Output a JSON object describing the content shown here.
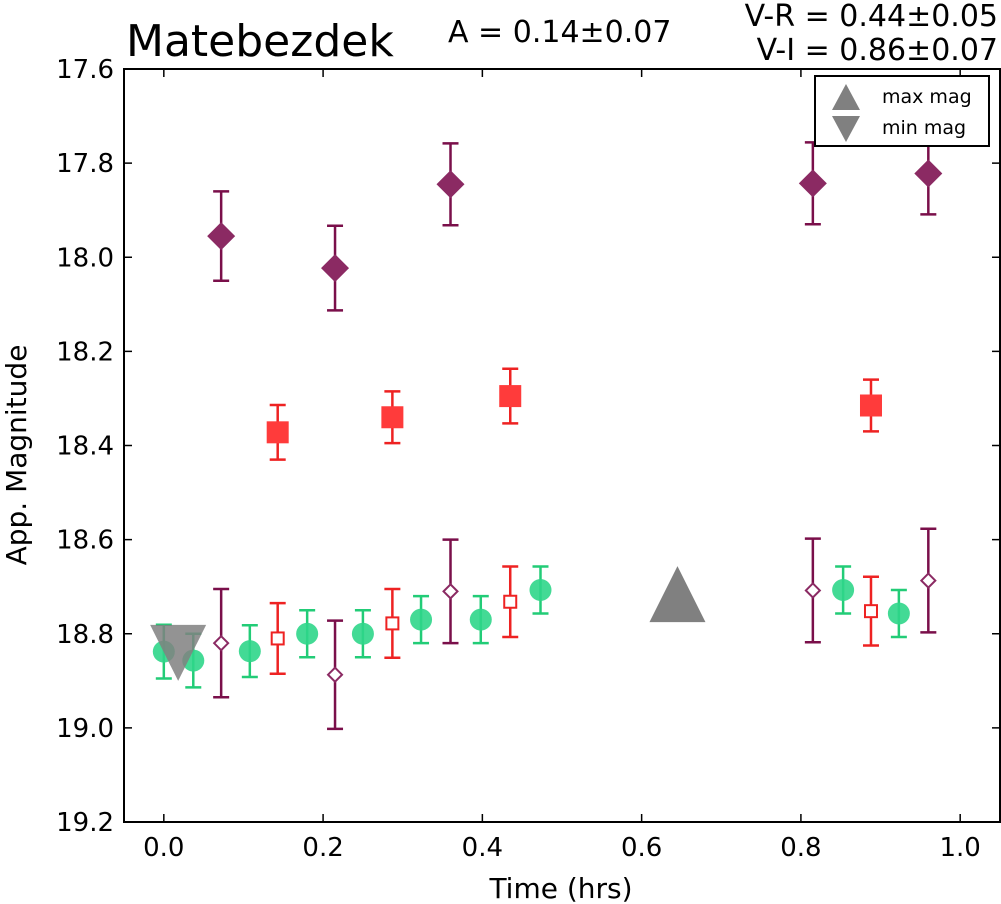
{
  "chart_data": {
    "type": "scatter",
    "title": "Matebezdek",
    "annotations": {
      "amplitude": "A  = 0.14±0.07",
      "v_r": "V-R = 0.44±0.05",
      "v_i": "V-I  = 0.86±0.07"
    },
    "xlabel": "Time (hrs)",
    "ylabel": "App. Magnitude",
    "xlim": [
      -0.05,
      1.05
    ],
    "ylim": [
      19.2,
      17.6
    ],
    "y_inverted": true,
    "xticks": [
      "0.0",
      "0.2",
      "0.4",
      "0.6",
      "0.8",
      "1.0"
    ],
    "xtick_values": [
      0.0,
      0.2,
      0.4,
      0.6,
      0.8,
      1.0
    ],
    "yticks": [
      "17.6",
      "17.8",
      "18.0",
      "18.2",
      "18.4",
      "18.6",
      "18.8",
      "19.0",
      "19.2"
    ],
    "ytick_values": [
      17.6,
      17.8,
      18.0,
      18.2,
      18.4,
      18.6,
      18.8,
      19.0,
      19.2
    ],
    "legend": {
      "position": "top-right",
      "entries": [
        {
          "label": "max mag",
          "marker": "triangle-up",
          "color": "#808080"
        },
        {
          "label": "min mag",
          "marker": "triangle-down",
          "color": "#808080"
        }
      ]
    },
    "series": [
      {
        "marker": "diamond",
        "filled": true,
        "color": "#8b2a63",
        "errcolor": "#7a0f4a",
        "points": [
          [
            0.072,
            17.955,
            0.095
          ],
          [
            0.215,
            18.023,
            0.09
          ],
          [
            0.36,
            17.845,
            0.087
          ],
          [
            0.815,
            17.843,
            0.087
          ],
          [
            0.96,
            17.822,
            0.087
          ]
        ]
      },
      {
        "marker": "square",
        "filled": true,
        "color": "#ff3b3b",
        "errcolor": "#ee2222",
        "points": [
          [
            0.143,
            18.372,
            0.058
          ],
          [
            0.287,
            18.34,
            0.055
          ],
          [
            0.435,
            18.295,
            0.058
          ],
          [
            0.888,
            18.315,
            0.055
          ]
        ]
      },
      {
        "marker": "circle",
        "filled": true,
        "color": "#2fd68a",
        "errcolor": "#22cc77",
        "points": [
          [
            0.0,
            18.838,
            0.057
          ],
          [
            0.037,
            18.857,
            0.057
          ],
          [
            0.108,
            18.837,
            0.055
          ],
          [
            0.18,
            18.8,
            0.05
          ],
          [
            0.25,
            18.8,
            0.05
          ],
          [
            0.323,
            18.77,
            0.05
          ],
          [
            0.398,
            18.77,
            0.05
          ],
          [
            0.473,
            18.707,
            0.05
          ],
          [
            0.853,
            18.707,
            0.05
          ],
          [
            0.923,
            18.757,
            0.05
          ]
        ]
      },
      {
        "marker": "square",
        "filled": false,
        "color": "#ee2222",
        "errcolor": "#ee2222",
        "points": [
          [
            0.143,
            18.81,
            0.075
          ],
          [
            0.287,
            18.778,
            0.073
          ],
          [
            0.435,
            18.732,
            0.075
          ],
          [
            0.888,
            18.752,
            0.073
          ]
        ]
      },
      {
        "marker": "diamond",
        "filled": false,
        "color": "#8b2a63",
        "errcolor": "#7a0f4a",
        "points": [
          [
            0.072,
            18.82,
            0.115
          ],
          [
            0.215,
            18.887,
            0.115
          ],
          [
            0.36,
            18.71,
            0.11
          ],
          [
            0.815,
            18.708,
            0.11
          ],
          [
            0.96,
            18.687,
            0.11
          ]
        ]
      }
    ],
    "markers": [
      {
        "label": "max mag",
        "shape": "triangle-up",
        "x": 0.645,
        "y": 18.72,
        "color": "#808080"
      },
      {
        "label": "min mag",
        "shape": "triangle-down",
        "x": 0.018,
        "y": 18.845,
        "color": "#808080"
      }
    ]
  }
}
